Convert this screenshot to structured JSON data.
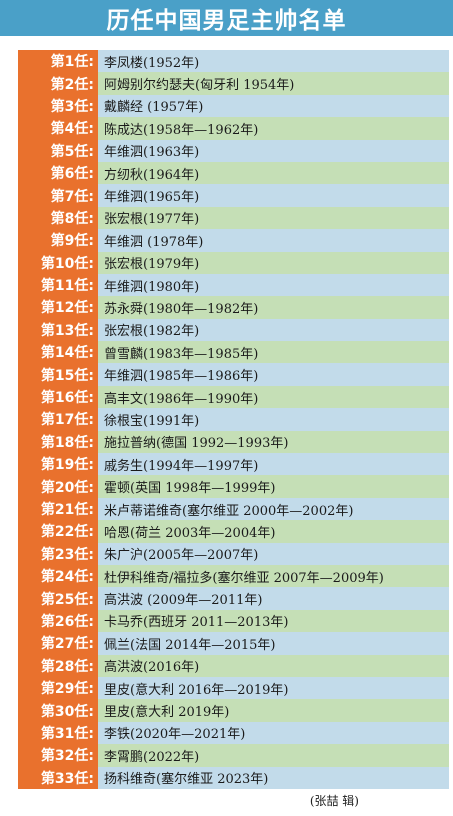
{
  "title": "历任中国男足主帅名单",
  "coaches": [
    {
      "num": "第1任:",
      "name": "李凤楼(1952年)"
    },
    {
      "num": "第2任:",
      "name": "阿姆别尔约瑟夫(匈牙利 1954年)"
    },
    {
      "num": "第3任:",
      "name": "戴麟经 (1957年)"
    },
    {
      "num": "第4任:",
      "name": "陈成达(1958年—1962年)"
    },
    {
      "num": "第5任:",
      "name": "年维泗(1963年)"
    },
    {
      "num": "第6任:",
      "name": "方纫秋(1964年)"
    },
    {
      "num": "第7任:",
      "name": "年维泗(1965年)"
    },
    {
      "num": "第8任:",
      "name": "张宏根(1977年)"
    },
    {
      "num": "第9任:",
      "name": "年维泗 (1978年)"
    },
    {
      "num": "第10任:",
      "name": "张宏根(1979年)"
    },
    {
      "num": "第11任:",
      "name": "年维泗(1980年)"
    },
    {
      "num": "第12任:",
      "name": "苏永舜(1980年—1982年)"
    },
    {
      "num": "第13任:",
      "name": "张宏根(1982年)"
    },
    {
      "num": "第14任:",
      "name": "曾雪麟(1983年—1985年)"
    },
    {
      "num": "第15任:",
      "name": "年维泗(1985年—1986年)"
    },
    {
      "num": "第16任:",
      "name": "高丰文(1986年—1990年)"
    },
    {
      "num": "第17任:",
      "name": "徐根宝(1991年)"
    },
    {
      "num": "第18任:",
      "name": "施拉普纳(德国 1992—1993年)"
    },
    {
      "num": "第19任:",
      "name": "戚务生(1994年—1997年)"
    },
    {
      "num": "第20任:",
      "name": "霍顿(英国 1998年—1999年)"
    },
    {
      "num": "第21任:",
      "name": "米卢蒂诺维奇(塞尔维亚 2000年—2002年)"
    },
    {
      "num": "第22任:",
      "name": "哈恩(荷兰 2003年—2004年)"
    },
    {
      "num": "第23任:",
      "name": "朱广沪(2005年—2007年)"
    },
    {
      "num": "第24任:",
      "name": "杜伊科维奇/福拉多(塞尔维亚 2007年—2009年)"
    },
    {
      "num": "第25任:",
      "name": "高洪波 (2009年—2011年)"
    },
    {
      "num": "第26任:",
      "name": "卡马乔(西班牙 2011—2013年)"
    },
    {
      "num": "第27任:",
      "name": "佩兰(法国 2014年—2015年)"
    },
    {
      "num": "第28任:",
      "name": "高洪波(2016年)"
    },
    {
      "num": "第29任:",
      "name": "里皮(意大利 2016年—2019年)"
    },
    {
      "num": "第30任:",
      "name": "里皮(意大利 2019年)"
    },
    {
      "num": "第31任:",
      "name": "李铁(2020年—2021年)"
    },
    {
      "num": "第32任:",
      "name": "李霄鹏(2022年)"
    },
    {
      "num": "第33任:",
      "name": "扬科维奇(塞尔维亚 2023年)"
    }
  ],
  "credit": "(张喆 辑)",
  "colors": {
    "title_bg": "#4aa0c8",
    "number_bg": "#e9712d",
    "row_green": "#c5dfb6",
    "row_blue": "#c2dbea"
  }
}
